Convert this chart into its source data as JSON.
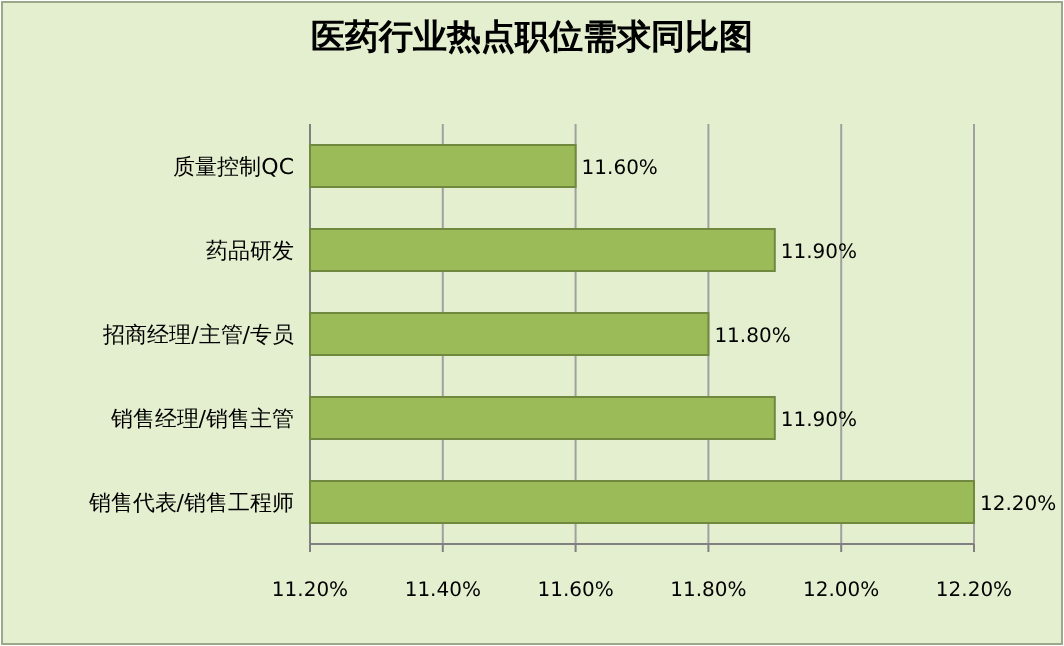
{
  "chart_data": {
    "type": "bar",
    "orientation": "horizontal",
    "title": "医药行业热点职位需求同比图",
    "categories": [
      "质量控制QC",
      "药品研发",
      "招商经理/主管/专员",
      "销售经理/销售主管",
      "销售代表/销售工程师"
    ],
    "values": [
      11.6,
      11.9,
      11.8,
      11.9,
      12.2
    ],
    "value_labels": [
      "11.60%",
      "11.90%",
      "11.80%",
      "11.90%",
      "12.20%"
    ],
    "color": "#9bbb59",
    "xlim": [
      11.2,
      12.2
    ],
    "xticks": [
      {
        "value": 11.2,
        "label": "11.20%"
      },
      {
        "value": 11.4,
        "label": "11.40%"
      },
      {
        "value": 11.6,
        "label": "11.60%"
      },
      {
        "value": 11.8,
        "label": "11.80%"
      },
      {
        "value": 12.0,
        "label": "12.00%"
      },
      {
        "value": 12.2,
        "label": "12.20%"
      }
    ],
    "grid": "x"
  }
}
